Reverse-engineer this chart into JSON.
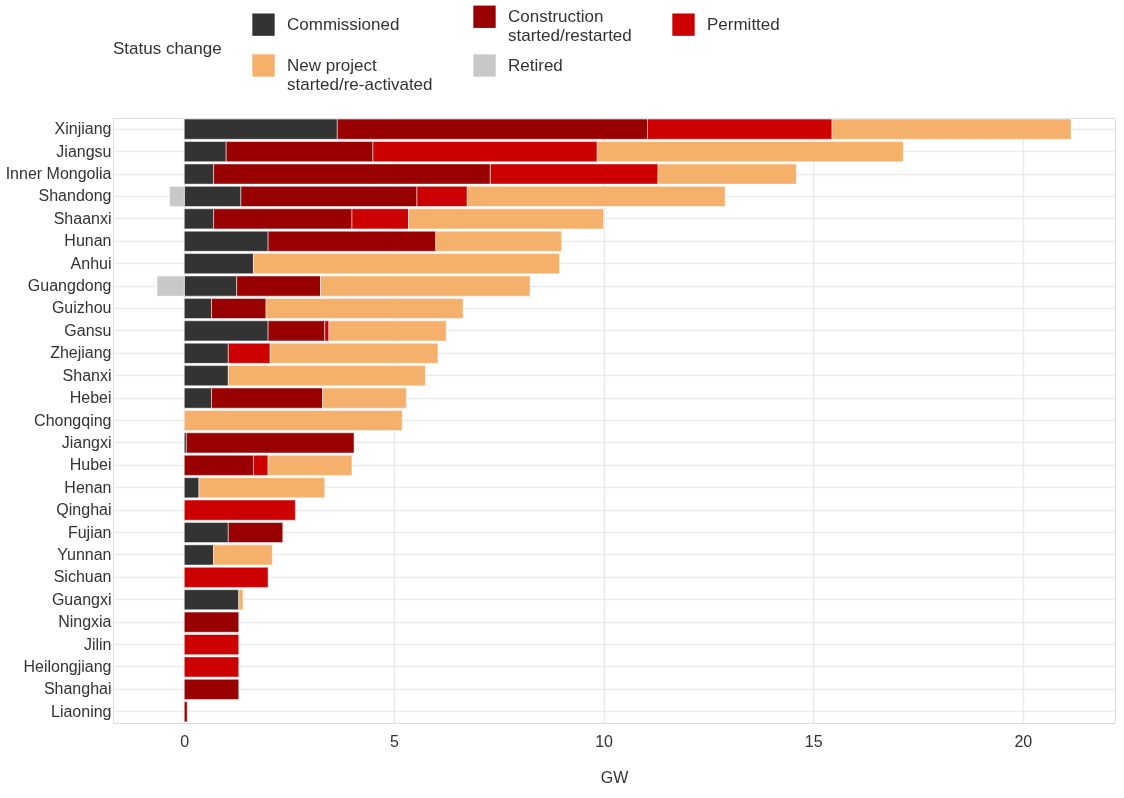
{
  "chart_data": {
    "type": "bar",
    "orientation": "horizontal",
    "stacked": true,
    "xlabel": "GW",
    "legend_title": "Status change",
    "legend": "top",
    "grid": true,
    "categories": [
      "Xinjiang",
      "Jiangsu",
      "Inner Mongolia",
      "Shandong",
      "Shaanxi",
      "Hunan",
      "Anhui",
      "Guangdong",
      "Guizhou",
      "Gansu",
      "Zhejiang",
      "Shanxi",
      "Hebei",
      "Chongqing",
      "Jiangxi",
      "Hubei",
      "Henan",
      "Qinghai",
      "Fujian",
      "Yunnan",
      "Sichuan",
      "Guangxi",
      "Ningxia",
      "Jilin",
      "Heilongjiang",
      "Shanghai",
      "Liaoning"
    ],
    "xlim": [
      -1.7,
      22.2
    ],
    "xticks": [
      0,
      5,
      10,
      15,
      20
    ],
    "series": [
      {
        "name": "Commissioned",
        "color": "#333333",
        "values": [
          3.65,
          1.0,
          0.7,
          1.35,
          0.7,
          2.0,
          1.65,
          1.25,
          0.65,
          2.0,
          1.05,
          1.05,
          0.65,
          null,
          0.05,
          null,
          0.35,
          null,
          1.05,
          0.7,
          null,
          1.3,
          null,
          null,
          null,
          null,
          null
        ]
      },
      {
        "name": "Construction\nstarted/restarted",
        "color": "#990000",
        "values": [
          7.4,
          3.5,
          6.6,
          4.2,
          3.3,
          4.0,
          null,
          2.0,
          1.3,
          1.35,
          null,
          null,
          2.65,
          null,
          4.0,
          1.65,
          null,
          null,
          1.3,
          null,
          null,
          null,
          1.3,
          null,
          null,
          1.3,
          0.07
        ]
      },
      {
        "name": "Permitted",
        "color": "#cc0000",
        "values": [
          4.4,
          5.35,
          4.0,
          1.2,
          1.35,
          null,
          null,
          null,
          null,
          0.1,
          1.0,
          null,
          null,
          null,
          null,
          0.35,
          null,
          2.65,
          null,
          null,
          2.0,
          null,
          null,
          1.3,
          1.3,
          null,
          null
        ]
      },
      {
        "name": "New project\nstarted/re-activated",
        "color": "#f5b06b",
        "values": [
          5.7,
          7.3,
          3.3,
          6.15,
          4.65,
          3.0,
          7.3,
          5.0,
          4.7,
          2.8,
          4.0,
          4.7,
          2.0,
          5.2,
          null,
          2.0,
          3.0,
          null,
          null,
          1.4,
          null,
          0.1,
          null,
          null,
          null,
          null,
          null
        ]
      },
      {
        "name": "Retired",
        "color": "#c8c8c8",
        "values": [
          null,
          null,
          null,
          -0.35,
          null,
          null,
          null,
          -0.65,
          null,
          null,
          null,
          null,
          null,
          null,
          null,
          null,
          null,
          null,
          null,
          null,
          null,
          null,
          null,
          null,
          null,
          null,
          null
        ]
      }
    ]
  }
}
